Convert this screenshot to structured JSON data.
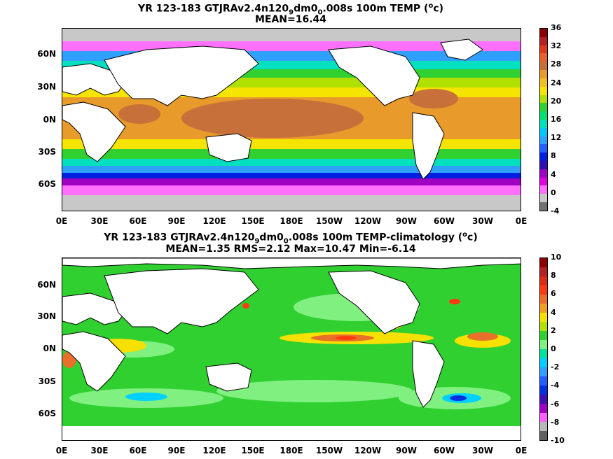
{
  "top": {
    "title_pre": "YR 123-183 GTJRAv2.4n120",
    "title_sub1": "9",
    "title_mid": "dm0",
    "title_sub2": "0",
    "title_post": ".008s 100m TEMP (",
    "title_sup": "o",
    "title_end": "c)",
    "stats": "MEAN=16.44",
    "colorbar_ticks": [
      "36",
      "32",
      "28",
      "24",
      "20",
      "16",
      "12",
      "8",
      "4",
      "0",
      "-4"
    ],
    "colorbar_colors": [
      "#8b0000",
      "#b22222",
      "#dd3a1a",
      "#e8602a",
      "#c8703a",
      "#e89a2a",
      "#f0c020",
      "#f5e400",
      "#b0e000",
      "#30d030",
      "#00e070",
      "#00e0c0",
      "#00c8ff",
      "#30a0ff",
      "#2060ff",
      "#0020e0",
      "#3010b0",
      "#a000c0",
      "#e000e0",
      "#ff70ff",
      "#c8c8c8",
      "#707070"
    ]
  },
  "bottom": {
    "title_pre": "YR 123-183 GTJRAv2.4n120",
    "title_sub1": "9",
    "title_mid": "dm0",
    "title_sub2": "0",
    "title_post": ".008s 100m TEMP-climatology (",
    "title_sup": "o",
    "title_end": "c)",
    "stats": "MEAN=1.35   RMS=2.12   Max=10.47   Min=-6.14",
    "colorbar_ticks": [
      "10",
      "8",
      "6",
      "4",
      "2",
      "0",
      "-2",
      "-4",
      "-6",
      "-8",
      "-10"
    ],
    "colorbar_colors": [
      "#8b0000",
      "#b22222",
      "#dd2a10",
      "#ff3a10",
      "#e8702a",
      "#f0a020",
      "#f5e000",
      "#b0e000",
      "#30d030",
      "#80f080",
      "#00e0a0",
      "#00d0ff",
      "#30a0ff",
      "#2060ff",
      "#0030e0",
      "#4010b0",
      "#a000c0",
      "#ff60ff",
      "#b8b8b8",
      "#606060"
    ]
  },
  "lat_labels": [
    "60N",
    "30N",
    "0N",
    "30S",
    "60S"
  ],
  "lon_labels": [
    "0E",
    "30E",
    "60E",
    "90E",
    "120E",
    "150E",
    "180E",
    "150W",
    "120W",
    "90W",
    "60W",
    "30W",
    "0E"
  ]
}
